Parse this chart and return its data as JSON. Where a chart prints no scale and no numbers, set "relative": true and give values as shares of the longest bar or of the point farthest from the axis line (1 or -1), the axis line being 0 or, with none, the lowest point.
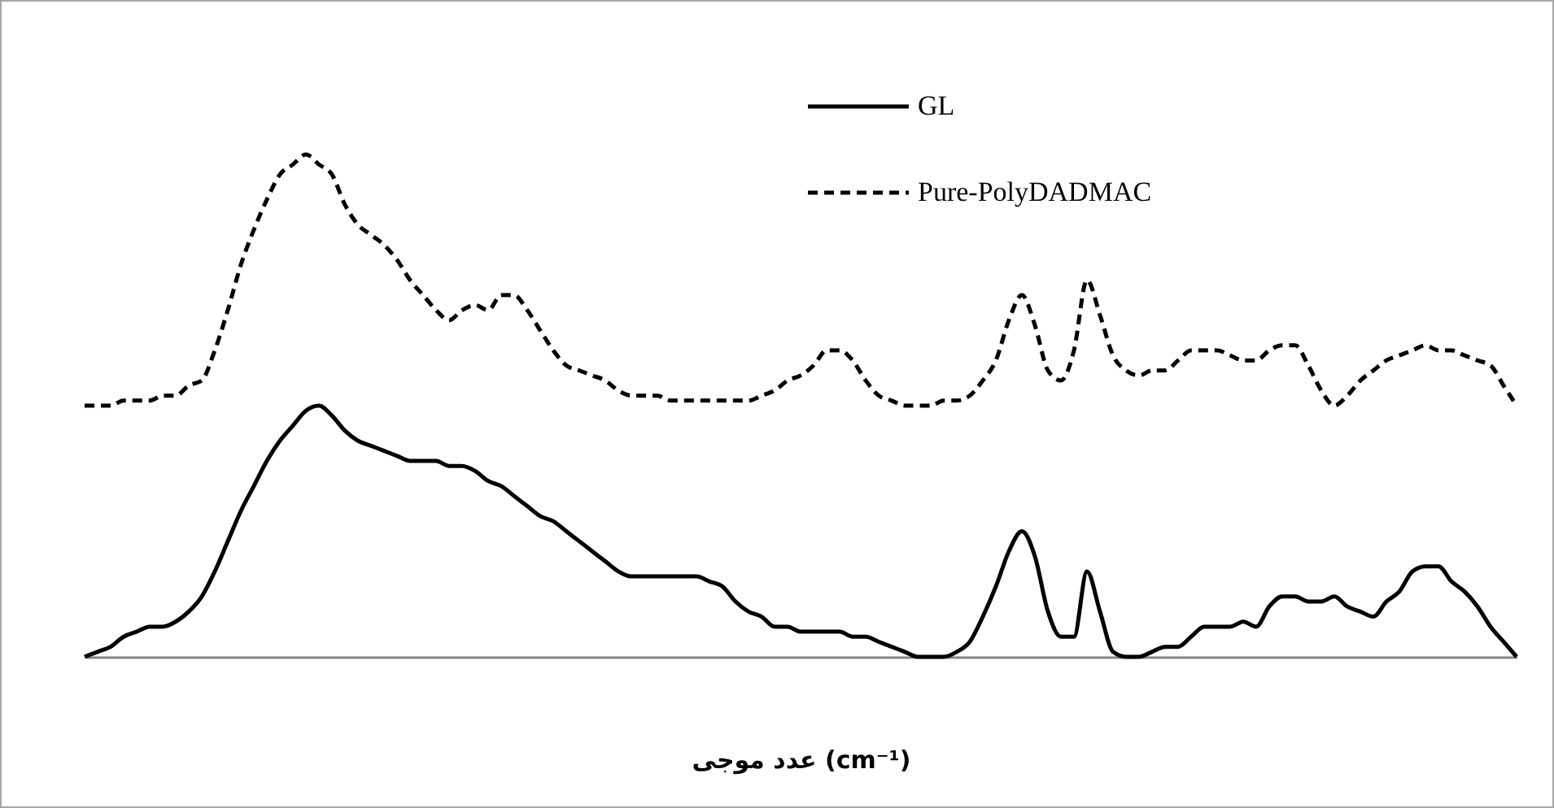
{
  "chart_data": {
    "type": "line",
    "xlabel": "عدد موجی (cm⁻¹)",
    "relative": true,
    "legend": "top right",
    "categories": [
      null,
      null,
      null,
      null,
      null,
      null,
      null,
      null,
      null,
      null,
      null,
      null,
      null,
      null,
      null,
      null,
      null,
      null,
      null,
      null,
      null,
      null,
      null,
      null,
      null,
      null,
      null,
      null,
      null,
      null,
      null,
      null,
      null,
      null,
      null,
      null,
      null,
      null,
      null,
      null,
      null,
      null,
      null,
      null,
      null,
      null,
      null,
      null,
      null,
      null,
      null,
      null,
      null,
      null,
      null,
      null,
      null,
      null,
      null,
      null,
      null,
      null,
      null,
      null,
      null,
      null,
      null,
      null,
      null,
      null,
      null,
      null,
      null,
      null,
      null,
      null,
      null,
      null,
      null,
      null,
      null,
      null,
      null,
      null,
      null,
      null,
      null,
      null,
      null,
      null,
      null,
      null,
      null,
      null,
      null,
      null,
      null,
      null,
      null,
      null,
      null,
      null,
      null,
      null,
      null,
      null,
      null,
      null,
      null,
      null,
      null
    ],
    "series": [
      {
        "name": "GL",
        "color": "#000000",
        "line_style": "solid",
        "values": [
          0,
          0.01,
          0.02,
          0.04,
          0.05,
          0.06,
          0.06,
          0.07,
          0.09,
          0.12,
          0.17,
          0.23,
          0.29,
          0.34,
          0.39,
          0.43,
          0.46,
          0.49,
          0.5,
          0.48,
          0.45,
          0.43,
          0.42,
          0.41,
          0.4,
          0.39,
          0.39,
          0.39,
          0.38,
          0.38,
          0.37,
          0.35,
          0.34,
          0.32,
          0.3,
          0.28,
          0.27,
          0.25,
          0.23,
          0.21,
          0.19,
          0.17,
          0.16,
          0.16,
          0.16,
          0.16,
          0.16,
          0.16,
          0.15,
          0.14,
          0.11,
          0.09,
          0.08,
          0.06,
          0.06,
          0.05,
          0.05,
          0.05,
          0.05,
          0.04,
          0.04,
          0.03,
          0.02,
          0.01,
          0,
          0,
          0,
          0.01,
          0.03,
          0.08,
          0.14,
          0.21,
          0.25,
          0.2,
          0.09,
          0.04,
          0.04,
          0.17,
          0.09,
          0.01,
          0,
          0,
          0.01,
          0.02,
          0.02,
          0.04,
          0.06,
          0.06,
          0.06,
          0.07,
          0.06,
          0.1,
          0.12,
          0.12,
          0.11,
          0.11,
          0.12,
          0.1,
          0.09,
          0.08,
          0.11,
          0.13,
          0.17,
          0.18,
          0.18,
          0.15,
          0.13,
          0.1,
          0.06,
          0.03,
          0
        ]
      },
      {
        "name": "Pure-PolyDADMAC",
        "color": "#000000",
        "line_style": "dashed",
        "values": [
          0.5,
          0.5,
          0.5,
          0.51,
          0.51,
          0.51,
          0.52,
          0.52,
          0.54,
          0.55,
          0.61,
          0.69,
          0.78,
          0.85,
          0.91,
          0.96,
          0.98,
          1,
          0.98,
          0.96,
          0.9,
          0.86,
          0.84,
          0.82,
          0.79,
          0.75,
          0.72,
          0.69,
          0.67,
          0.69,
          0.7,
          0.69,
          0.72,
          0.72,
          0.69,
          0.65,
          0.61,
          0.58,
          0.57,
          0.56,
          0.55,
          0.53,
          0.52,
          0.52,
          0.52,
          0.51,
          0.51,
          0.51,
          0.51,
          0.51,
          0.51,
          0.51,
          0.52,
          0.53,
          0.55,
          0.56,
          0.58,
          0.61,
          0.61,
          0.59,
          0.55,
          0.52,
          0.51,
          0.5,
          0.5,
          0.5,
          0.51,
          0.51,
          0.52,
          0.55,
          0.59,
          0.67,
          0.72,
          0.66,
          0.57,
          0.55,
          0.61,
          0.75,
          0.68,
          0.6,
          0.57,
          0.56,
          0.57,
          0.57,
          0.59,
          0.61,
          0.61,
          0.61,
          0.6,
          0.59,
          0.59,
          0.61,
          0.62,
          0.62,
          0.58,
          0.53,
          0.5,
          0.52,
          0.55,
          0.57,
          0.59,
          0.6,
          0.61,
          0.62,
          0.61,
          0.61,
          0.6,
          0.59,
          0.58,
          0.54,
          0.5
        ]
      }
    ]
  }
}
